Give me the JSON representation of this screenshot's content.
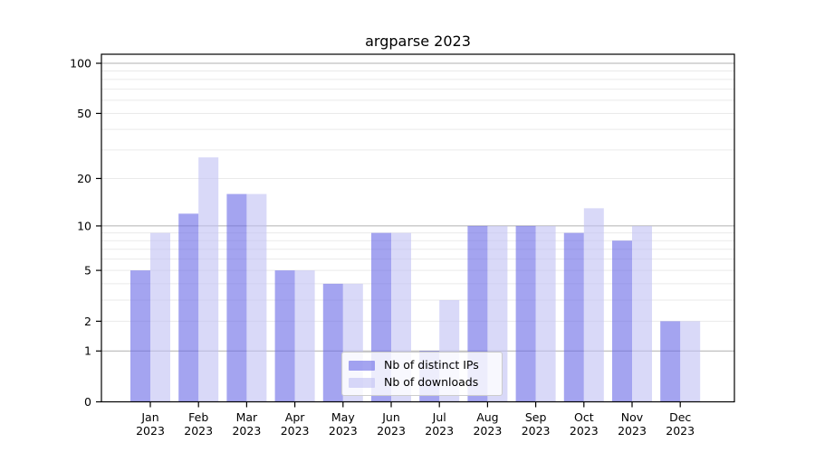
{
  "chart_data": {
    "type": "bar",
    "title": "argparse 2023",
    "categories": [
      "Jan",
      "Feb",
      "Mar",
      "Apr",
      "May",
      "Jun",
      "Jul",
      "Aug",
      "Sep",
      "Oct",
      "Nov",
      "Dec"
    ],
    "category_year": "2023",
    "series": [
      {
        "name": "Nb of distinct IPs",
        "color": "rgba(103,103,230,0.6)",
        "hex_on_white": "#a4a4f0",
        "values": [
          5,
          12,
          16,
          5,
          4,
          9,
          1,
          10,
          10,
          9,
          8,
          2
        ]
      },
      {
        "name": "Nb of downloads",
        "color": "rgba(192,192,243,0.6)",
        "hex_on_white": "#d9d9f8",
        "values": [
          9,
          27,
          16,
          5,
          4,
          9,
          3,
          10,
          10,
          13,
          10,
          2
        ]
      }
    ],
    "xlabel": "",
    "ylabel": "",
    "yscale": "log1p",
    "ylim": [
      0,
      113
    ],
    "yticks": [
      0,
      1,
      2,
      5,
      10,
      20,
      50,
      100
    ],
    "grid": "on",
    "grid_major_at": [
      1,
      10,
      100
    ],
    "grid_minor_at": [
      2,
      3,
      4,
      5,
      6,
      7,
      8,
      9,
      20,
      30,
      40,
      50,
      60,
      70,
      80,
      90
    ],
    "legend_position": "lower center"
  },
  "style": {
    "background": "#ffffff",
    "grid_major_color": "#b0b0b0",
    "grid_minor_color": "#eaeaea",
    "spine_color": "#000000",
    "text_color": "#000000",
    "legend_border_color": "#cccccc"
  }
}
